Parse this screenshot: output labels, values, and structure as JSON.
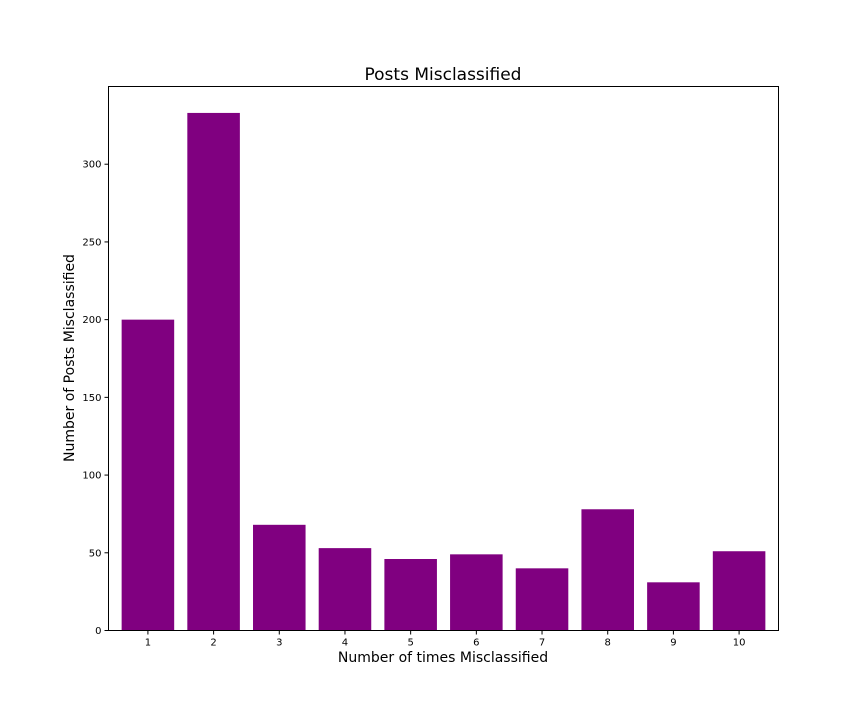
{
  "chart_data": {
    "type": "bar",
    "title": "Posts Misclassified",
    "xlabel": "Number of times Misclassified",
    "ylabel": "Number of Posts Misclassified",
    "categories": [
      "1",
      "2",
      "3",
      "4",
      "5",
      "6",
      "7",
      "8",
      "9",
      "10"
    ],
    "values": [
      200,
      333,
      68,
      53,
      46,
      49,
      40,
      78,
      31,
      51
    ],
    "ylim": [
      0,
      350
    ],
    "yticks": [
      0,
      50,
      100,
      150,
      200,
      250,
      300
    ],
    "grid": false,
    "bar_color": "#800080"
  }
}
